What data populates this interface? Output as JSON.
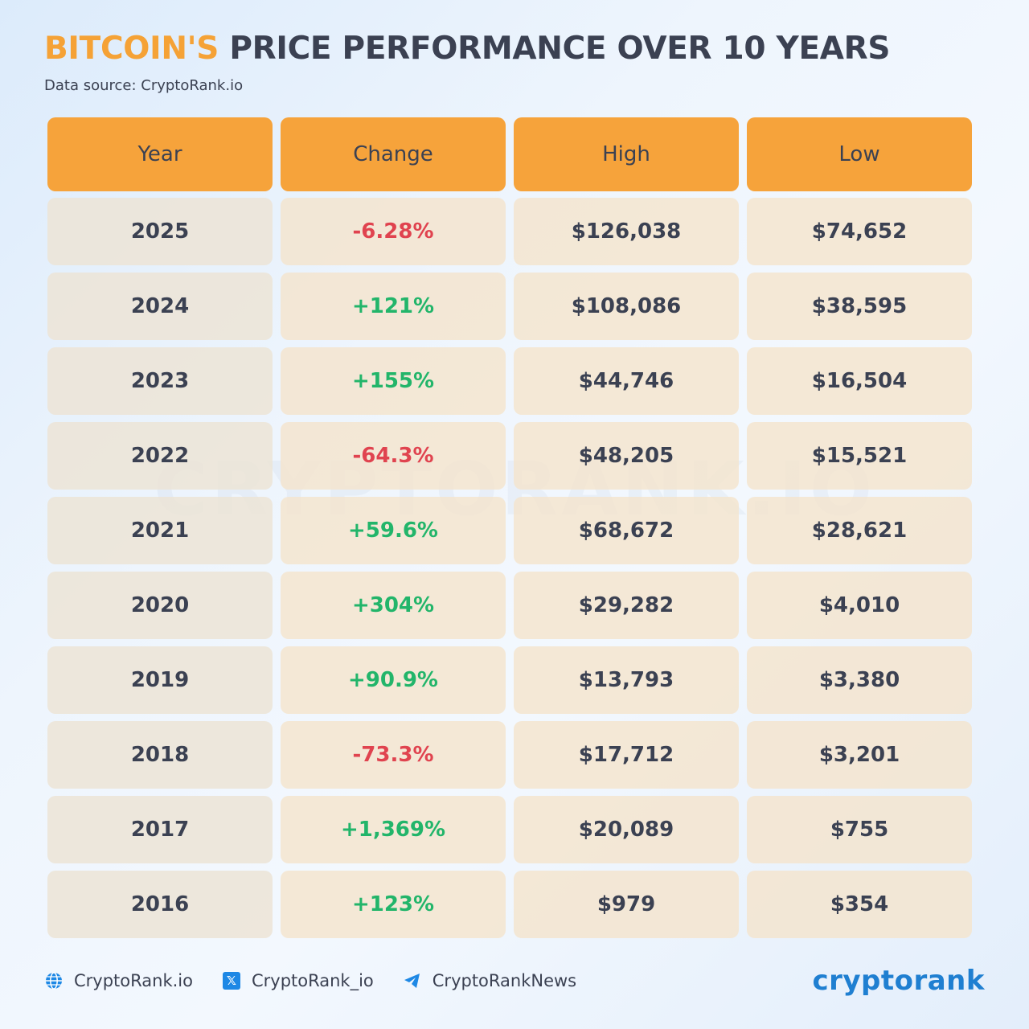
{
  "title": {
    "highlight": "BITCOIN'S",
    "rest": "PRICE PERFORMANCE OVER 10 YEARS"
  },
  "source": "Data source: CryptoRank.io",
  "watermark": "CRYPTORANK.IO",
  "colors": {
    "header": "#f6a33b",
    "positive": "#22b56a",
    "negative": "#e0434f",
    "accent": "#f5a236",
    "brand": "#1f7fd1"
  },
  "chart_data": {
    "type": "table",
    "title": "BITCOIN'S PRICE PERFORMANCE OVER 10 YEARS",
    "columns": [
      "Year",
      "Change",
      "High",
      "Low"
    ],
    "rows": [
      {
        "year": "2025",
        "change": "-6.28%",
        "high": "$126,038",
        "low": "$74,652"
      },
      {
        "year": "2024",
        "change": "+121%",
        "high": "$108,086",
        "low": "$38,595"
      },
      {
        "year": "2023",
        "change": "+155%",
        "high": "$44,746",
        "low": "$16,504"
      },
      {
        "year": "2022",
        "change": "-64.3%",
        "high": "$48,205",
        "low": "$15,521"
      },
      {
        "year": "2021",
        "change": "+59.6%",
        "high": "$68,672",
        "low": "$28,621"
      },
      {
        "year": "2020",
        "change": "+304%",
        "high": "$29,282",
        "low": "$4,010"
      },
      {
        "year": "2019",
        "change": "+90.9%",
        "high": "$13,793",
        "low": "$3,380"
      },
      {
        "year": "2018",
        "change": "-73.3%",
        "high": "$17,712",
        "low": "$3,201"
      },
      {
        "year": "2017",
        "change": "+1,369%",
        "high": "$20,089",
        "low": "$755"
      },
      {
        "year": "2016",
        "change": "+123%",
        "high": "$979",
        "low": "$354"
      }
    ]
  },
  "footer": {
    "website": {
      "icon": "globe-icon",
      "label": "CryptoRank.io"
    },
    "twitter": {
      "icon": "x-logo-icon",
      "label": "CryptoRank_io"
    },
    "telegram": {
      "icon": "telegram-icon",
      "label": "CryptoRankNews"
    }
  },
  "brand": "cryptorank"
}
